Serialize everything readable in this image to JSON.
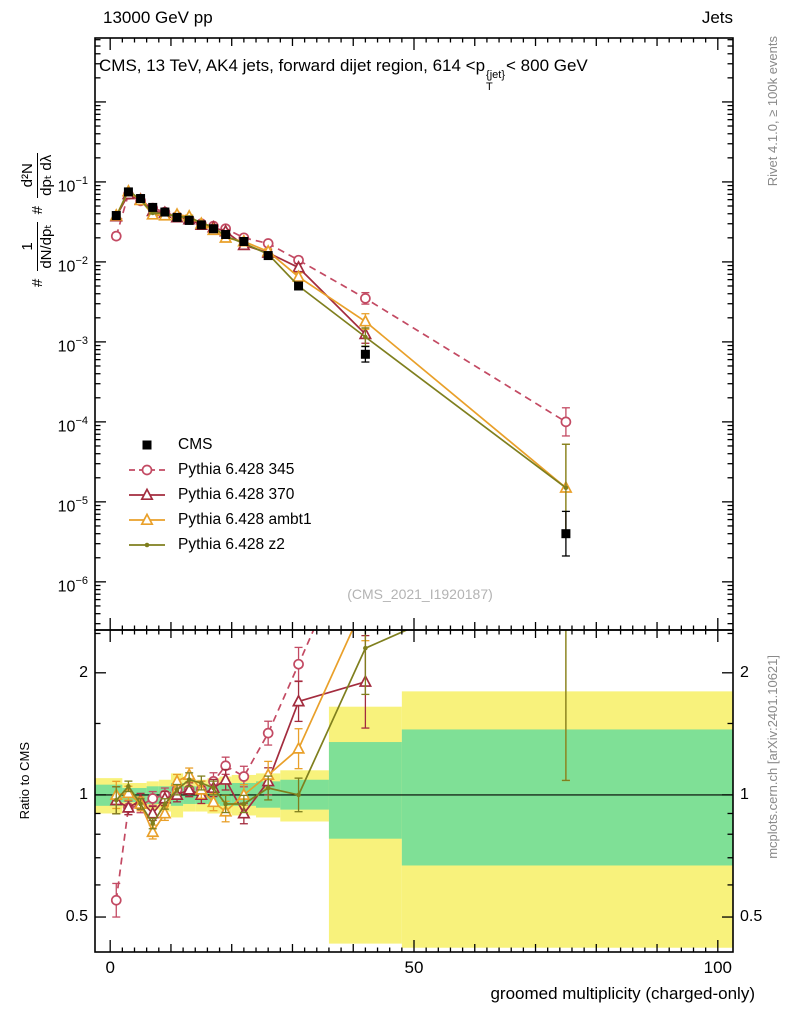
{
  "header": {
    "left": "13000 GeV pp",
    "right": "Jets"
  },
  "title": {
    "prefix": "CMS, 13 TeV, AK4 jets, forward dijet region, 614 <p",
    "sup": "{jet}",
    "sub": "T",
    "suffix": "< 800 GeV"
  },
  "side_notes": {
    "top_right": "Rivet 4.1.0, ≥ 100k events",
    "bottom_right": "mcplots.cern.ch [arXiv:2401.10621]"
  },
  "watermark": "(CMS_2021_I1920187)",
  "axes": {
    "y_main": {
      "hash1": "#",
      "num1": "1",
      "den1": "dN/dpₜ",
      "hash2": "#",
      "num2": "d²N",
      "den2": "dpₜ dλ"
    },
    "ratio_label": "Ratio to CMS",
    "x_label": "groomed multiplicity (charged-only)"
  },
  "chart_data": {
    "type": "line",
    "title": "CMS, 13 TeV, AK4 jets, forward dijet region, 614 < pT{jet} < 800 GeV",
    "xlabel": "groomed multiplicity (charged-only)",
    "ylabel": "# 1/(dN/dpT) # d²N/(dpT dλ)",
    "ratio_ylabel": "Ratio to CMS",
    "legend_position": "middle-left",
    "grid": false,
    "xlim": [
      -2.5,
      102.5
    ],
    "x_ticks": [
      0,
      50,
      100
    ],
    "main_ylim": [
      2.5e-07,
      6.3
    ],
    "main_tick_exponents": [
      -1,
      -2,
      -3,
      -4,
      -5,
      -6
    ],
    "ratio_ylim": [
      0.41,
      2.55
    ],
    "ratio_ticks": [
      0.5,
      1,
      2
    ],
    "colors": {
      "band_yellow": "#f8f27c",
      "band_green": "#7fe096"
    },
    "x": [
      1,
      3,
      5,
      7,
      9,
      11,
      13,
      15,
      17,
      19,
      22,
      26,
      31,
      42,
      75
    ],
    "series": [
      {
        "name": "CMS",
        "color": "#000000",
        "marker": "square",
        "line": "none",
        "values": [
          0.038,
          0.075,
          0.062,
          0.048,
          0.042,
          0.036,
          0.033,
          0.029,
          0.026,
          0.022,
          0.018,
          0.012,
          0.005,
          0.0007,
          4e-06
        ],
        "err_fac": [
          1.1,
          1.04,
          1.04,
          1.04,
          1.04,
          1.04,
          1.05,
          1.05,
          1.05,
          1.06,
          1.06,
          1.07,
          1.1,
          1.25,
          1.9
        ],
        "ratio": null
      },
      {
        "name": "Pythia 6.428 345",
        "color": "#c34a63",
        "marker": "circle",
        "line": "dashed",
        "values": [
          0.021,
          0.07,
          0.058,
          0.047,
          0.042,
          0.037,
          0.034,
          0.03,
          0.028,
          0.026,
          0.02,
          0.017,
          0.0105,
          0.0035,
          0.0001
        ],
        "err_fac": [
          1.1,
          1.04,
          1.04,
          1.04,
          1.04,
          1.04,
          1.04,
          1.05,
          1.05,
          1.05,
          1.06,
          1.07,
          1.1,
          1.18,
          1.5
        ],
        "ratio": [
          0.55,
          0.93,
          0.94,
          0.98,
          1.0,
          1.03,
          1.03,
          1.03,
          1.08,
          1.18,
          1.11,
          1.42,
          2.1,
          5.0,
          25
        ]
      },
      {
        "name": "Pythia 6.428 370",
        "color": "#a32c3e",
        "marker": "triangle",
        "line": "solid",
        "values": [
          0.037,
          0.07,
          0.06,
          0.043,
          0.041,
          0.036,
          0.034,
          0.029,
          0.027,
          0.024,
          0.0162,
          0.013,
          0.0085,
          0.00125,
          null
        ],
        "err_fac": [
          1.08,
          1.04,
          1.04,
          1.04,
          1.04,
          1.04,
          1.04,
          1.05,
          1.05,
          1.06,
          1.06,
          1.08,
          1.12,
          1.3,
          null
        ],
        "ratio": [
          0.97,
          0.93,
          0.97,
          0.9,
          0.98,
          1.0,
          1.03,
          1.0,
          1.04,
          1.09,
          0.9,
          1.08,
          1.7,
          1.9,
          null
        ]
      },
      {
        "name": "Pythia 6.428 ambt1",
        "color": "#e9a02a",
        "marker": "triangle",
        "line": "solid",
        "values": [
          0.038,
          0.076,
          0.059,
          0.039,
          0.038,
          0.039,
          0.037,
          0.03,
          0.025,
          0.02,
          0.018,
          0.0135,
          0.0065,
          0.0018,
          1.5e-05
        ],
        "err_fac": [
          1.08,
          1.04,
          1.04,
          1.04,
          1.04,
          1.04,
          1.04,
          1.05,
          1.05,
          1.06,
          1.06,
          1.08,
          1.12,
          1.25,
          3.5
        ],
        "ratio": [
          1.0,
          1.01,
          0.95,
          0.81,
          0.9,
          1.08,
          1.12,
          1.03,
          0.96,
          0.91,
          1.0,
          1.12,
          1.3,
          3.0,
          3.8
        ]
      },
      {
        "name": "Pythia 6.428 z2",
        "color": "#7f7f1e",
        "marker": "dot",
        "line": "solid",
        "values": [
          0.037,
          0.079,
          0.059,
          0.041,
          0.04,
          0.037,
          0.036,
          0.031,
          0.027,
          0.021,
          0.0171,
          0.0125,
          0.005,
          0.00115,
          1.5e-05
        ],
        "err_fac": [
          1.08,
          1.03,
          1.03,
          1.03,
          1.03,
          1.03,
          1.04,
          1.04,
          1.04,
          1.05,
          1.05,
          1.07,
          1.1,
          1.3,
          3.5
        ],
        "ratio": [
          0.97,
          1.05,
          0.95,
          0.85,
          0.95,
          1.03,
          1.09,
          1.07,
          1.04,
          0.95,
          0.95,
          1.04,
          1.0,
          2.3,
          3.8
        ]
      }
    ],
    "ratio_bands": [
      {
        "x0": -2.5,
        "x1": 2,
        "green": [
          0.94,
          1.06
        ],
        "yellow": [
          0.9,
          1.1
        ]
      },
      {
        "x0": 2,
        "x1": 4,
        "green": [
          0.96,
          1.04
        ],
        "yellow": [
          0.93,
          1.07
        ]
      },
      {
        "x0": 4,
        "x1": 6,
        "green": [
          0.96,
          1.04
        ],
        "yellow": [
          0.93,
          1.07
        ]
      },
      {
        "x0": 6,
        "x1": 8,
        "green": [
          0.95,
          1.05
        ],
        "yellow": [
          0.92,
          1.08
        ]
      },
      {
        "x0": 8,
        "x1": 10,
        "green": [
          0.95,
          1.05
        ],
        "yellow": [
          0.91,
          1.09
        ]
      },
      {
        "x0": 10,
        "x1": 12,
        "green": [
          0.94,
          1.07
        ],
        "yellow": [
          0.88,
          1.13
        ]
      },
      {
        "x0": 12,
        "x1": 14,
        "green": [
          0.95,
          1.05
        ],
        "yellow": [
          0.91,
          1.09
        ]
      },
      {
        "x0": 14,
        "x1": 16,
        "green": [
          0.95,
          1.05
        ],
        "yellow": [
          0.91,
          1.09
        ]
      },
      {
        "x0": 16,
        "x1": 18,
        "green": [
          0.95,
          1.06
        ],
        "yellow": [
          0.9,
          1.1
        ]
      },
      {
        "x0": 18,
        "x1": 20,
        "green": [
          0.94,
          1.06
        ],
        "yellow": [
          0.9,
          1.11
        ]
      },
      {
        "x0": 20,
        "x1": 24,
        "green": [
          0.94,
          1.07
        ],
        "yellow": [
          0.89,
          1.12
        ]
      },
      {
        "x0": 24,
        "x1": 28,
        "green": [
          0.93,
          1.08
        ],
        "yellow": [
          0.88,
          1.13
        ]
      },
      {
        "x0": 28,
        "x1": 36,
        "green": [
          0.92,
          1.09
        ],
        "yellow": [
          0.86,
          1.15
        ]
      },
      {
        "x0": 36,
        "x1": 48,
        "green": [
          0.78,
          1.35
        ],
        "yellow": [
          0.43,
          1.65
        ]
      },
      {
        "x0": 48,
        "x1": 102.5,
        "green": [
          0.67,
          1.45
        ],
        "yellow": [
          0.42,
          1.8
        ]
      }
    ]
  }
}
